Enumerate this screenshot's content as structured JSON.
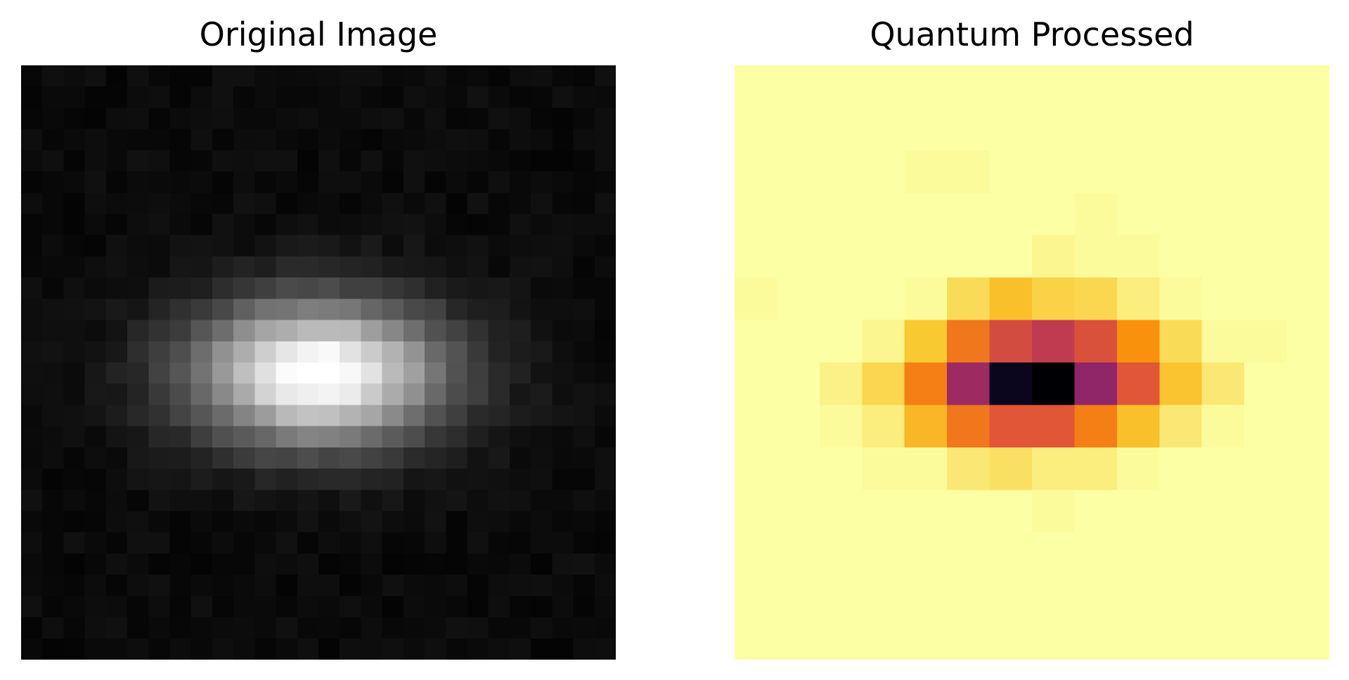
{
  "chart_data": [
    {
      "type": "heatmap",
      "title": "Original Image",
      "colormap": "gray",
      "axes_visible": false,
      "grid": false,
      "rows": 28,
      "cols": 28,
      "value_range": [
        0,
        1
      ],
      "blob": {
        "center_row": 14,
        "center_col": 14,
        "sigma_row": 2.4,
        "sigma_col": 4.2,
        "peak": 1.0
      },
      "noise": {
        "mean": 0.04,
        "amplitude": 0.05,
        "seed": 7
      }
    },
    {
      "type": "heatmap",
      "title": "Quantum Processed",
      "colormap": "inferno",
      "axes_visible": false,
      "grid": false,
      "rows": 14,
      "cols": 14,
      "value_range": [
        0,
        1
      ],
      "values": [
        [
          1.0,
          1.0,
          1.0,
          1.0,
          1.0,
          1.0,
          1.0,
          1.0,
          1.0,
          1.0,
          1.0,
          1.0,
          1.0,
          1.0
        ],
        [
          1.0,
          1.0,
          1.0,
          1.0,
          1.0,
          1.0,
          1.0,
          1.0,
          1.0,
          1.0,
          1.0,
          1.0,
          1.0,
          1.0
        ],
        [
          1.0,
          1.0,
          1.0,
          1.0,
          0.99,
          0.99,
          1.0,
          1.0,
          1.0,
          1.0,
          1.0,
          1.0,
          1.0,
          1.0
        ],
        [
          1.0,
          1.0,
          1.0,
          1.0,
          1.0,
          1.0,
          1.0,
          1.0,
          0.99,
          1.0,
          1.0,
          1.0,
          1.0,
          1.0
        ],
        [
          1.0,
          1.0,
          1.0,
          1.0,
          1.0,
          1.0,
          1.0,
          0.98,
          0.99,
          0.99,
          1.0,
          1.0,
          1.0,
          1.0
        ],
        [
          0.99,
          1.0,
          1.0,
          1.0,
          0.99,
          0.92,
          0.86,
          0.9,
          0.91,
          0.96,
          0.99,
          1.0,
          1.0,
          1.0
        ],
        [
          1.0,
          1.0,
          1.0,
          0.98,
          0.88,
          0.7,
          0.58,
          0.52,
          0.6,
          0.76,
          0.92,
          0.99,
          0.99,
          1.0
        ],
        [
          1.0,
          1.0,
          0.97,
          0.91,
          0.72,
          0.43,
          0.05,
          0.0,
          0.4,
          0.62,
          0.87,
          0.95,
          1.0,
          1.0
        ],
        [
          1.0,
          1.0,
          0.99,
          0.96,
          0.84,
          0.7,
          0.62,
          0.62,
          0.72,
          0.86,
          0.95,
          0.99,
          1.0,
          1.0
        ],
        [
          1.0,
          1.0,
          1.0,
          0.99,
          0.99,
          0.95,
          0.93,
          0.96,
          0.96,
          0.99,
          1.0,
          1.0,
          1.0,
          1.0
        ],
        [
          1.0,
          1.0,
          1.0,
          1.0,
          1.0,
          1.0,
          1.0,
          0.99,
          1.0,
          1.0,
          1.0,
          1.0,
          1.0,
          1.0
        ],
        [
          1.0,
          1.0,
          1.0,
          1.0,
          1.0,
          1.0,
          1.0,
          1.0,
          1.0,
          1.0,
          1.0,
          1.0,
          1.0,
          1.0
        ],
        [
          1.0,
          1.0,
          1.0,
          1.0,
          1.0,
          1.0,
          1.0,
          1.0,
          1.0,
          1.0,
          1.0,
          1.0,
          1.0,
          1.0
        ],
        [
          1.0,
          1.0,
          1.0,
          1.0,
          1.0,
          1.0,
          1.0,
          1.0,
          1.0,
          1.0,
          1.0,
          1.0,
          1.0,
          1.0
        ]
      ]
    }
  ]
}
